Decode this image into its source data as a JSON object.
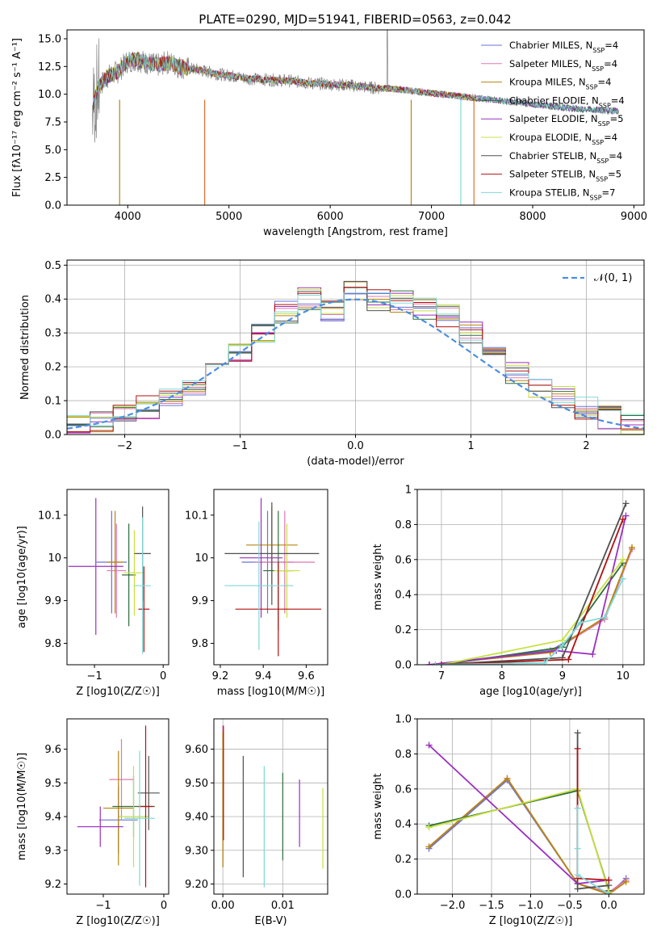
{
  "figure": {
    "title": "PLATE=0290, MJD=51941, FIBERID=0563, z=0.042"
  },
  "models": [
    {
      "name": "Chabrier MILES, N",
      "sub": "SSP",
      "eq": "=4",
      "color": "#6a72d6"
    },
    {
      "name": "Salpeter MILES, N",
      "sub": "SSP",
      "eq": "=4",
      "color": "#e078b0"
    },
    {
      "name": "Kroupa MILES, N",
      "sub": "SSP",
      "eq": "=4",
      "color": "#b8860b"
    },
    {
      "name": "Chabrier ELODIE, N",
      "sub": "SSP",
      "eq": "=4",
      "color": "#2e6e3a"
    },
    {
      "name": "Salpeter ELODIE, N",
      "sub": "SSP",
      "eq": "=5",
      "color": "#9b2fc0"
    },
    {
      "name": "Kroupa ELODIE, N",
      "sub": "SSP",
      "eq": "=4",
      "color": "#c8e040"
    },
    {
      "name": "Chabrier STELIB, N",
      "sub": "SSP",
      "eq": "=4",
      "color": "#505050"
    },
    {
      "name": "Salpeter STELIB, N",
      "sub": "SSP",
      "eq": "=5",
      "color": "#b01010"
    },
    {
      "name": "Kroupa STELIB, N",
      "sub": "SSP",
      "eq": "=7",
      "color": "#80d8d8"
    }
  ],
  "chart_data": [
    {
      "id": "spectrum",
      "type": "line",
      "title": "PLATE=0290, MJD=51941, FIBERID=0563, z=0.042",
      "xlabel": "wavelength [Angstrom, rest frame]",
      "ylabel": "Flux [fλ10⁻¹⁷ erg cm⁻² s⁻¹ A⁻¹]",
      "xlim": [
        3400,
        9100
      ],
      "ylim": [
        0,
        15.8
      ],
      "xticks": [
        4000,
        5000,
        6000,
        7000,
        8000,
        9000
      ],
      "yticks": [
        0.0,
        2.5,
        5.0,
        7.5,
        10.0,
        12.5,
        15.0
      ],
      "data_color": "#808080",
      "spectrum_x": [
        3650,
        3700,
        3800,
        3900,
        4000,
        4100,
        4200,
        4300,
        4400,
        4500,
        4600,
        4700,
        4800,
        4900,
        5000,
        5200,
        5400,
        5600,
        5800,
        6000,
        6200,
        6400,
        6600,
        6800,
        7000,
        7200,
        7400,
        7600,
        7800,
        8000,
        8200,
        8400,
        8600,
        8800
      ],
      "spectrum_y": [
        8.5,
        10.5,
        11.6,
        12.0,
        13.0,
        13.1,
        12.8,
        12.6,
        12.9,
        12.5,
        12.3,
        12.2,
        12.0,
        11.8,
        11.7,
        11.4,
        11.3,
        11.2,
        11.0,
        10.9,
        10.8,
        10.6,
        10.5,
        10.3,
        10.1,
        9.9,
        9.7,
        9.5,
        9.3,
        9.1,
        8.9,
        8.7,
        8.6,
        8.5
      ]
    },
    {
      "id": "residuals",
      "type": "line",
      "xlabel": "(data-model)/error",
      "ylabel": "Normed distribution",
      "xlim": [
        -2.5,
        2.5
      ],
      "ylim": [
        0,
        0.515
      ],
      "xticks": [
        -2,
        -1,
        0,
        1,
        2
      ],
      "yticks": [
        0.0,
        0.1,
        0.2,
        0.3,
        0.4,
        0.5
      ],
      "legend": "𝒩(0, 1)",
      "gauss_color": "#4a8fe0",
      "bin_edges": [
        -2.5,
        -2.3,
        -2.1,
        -1.9,
        -1.7,
        -1.5,
        -1.3,
        -1.1,
        -0.9,
        -0.7,
        -0.5,
        -0.3,
        -0.1,
        0.1,
        0.3,
        0.5,
        0.7,
        0.9,
        1.1,
        1.3,
        1.5,
        1.7,
        1.9,
        2.1,
        2.3,
        2.5
      ],
      "hist_base": [
        0.03,
        0.04,
        0.06,
        0.08,
        0.11,
        0.15,
        0.19,
        0.24,
        0.3,
        0.36,
        0.4,
        0.36,
        0.42,
        0.4,
        0.39,
        0.37,
        0.35,
        0.3,
        0.24,
        0.18,
        0.14,
        0.11,
        0.08,
        0.05,
        0.03
      ]
    },
    {
      "id": "Z-age",
      "type": "scatter",
      "xlabel": "Z [log10(Z/Z☉)]",
      "ylabel": "age  [log10(age/yr)]",
      "xlim": [
        -1.4,
        0.08
      ],
      "ylim": [
        9.75,
        10.16
      ],
      "xticks": [
        -1,
        0
      ],
      "yticks": [
        9.8,
        9.9,
        10.0,
        10.1
      ],
      "points": [
        {
          "x": -0.75,
          "y": 9.99,
          "xerr": 0.22,
          "yerr": 0.12
        },
        {
          "x": -0.68,
          "y": 9.97,
          "xerr": 0.14,
          "yerr": 0.11
        },
        {
          "x": -0.7,
          "y": 9.99,
          "xerr": 0.12,
          "yerr": 0.12
        },
        {
          "x": -0.5,
          "y": 9.96,
          "xerr": 0.1,
          "yerr": 0.12
        },
        {
          "x": -0.98,
          "y": 9.98,
          "xerr": 0.4,
          "yerr": 0.16
        },
        {
          "x": -0.42,
          "y": 9.965,
          "xerr": 0.15,
          "yerr": 0.1
        },
        {
          "x": -0.3,
          "y": 10.01,
          "xerr": 0.12,
          "yerr": 0.11
        },
        {
          "x": -0.28,
          "y": 9.88,
          "xerr": 0.08,
          "yerr": 0.1
        },
        {
          "x": -0.3,
          "y": 9.935,
          "xerr": 0.12,
          "yerr": 0.16
        }
      ]
    },
    {
      "id": "mass-age",
      "type": "scatter",
      "xlabel": "mass [log10(M/M☉)]",
      "ylabel": "",
      "xlim": [
        9.17,
        9.7
      ],
      "ylim": [
        9.75,
        10.16
      ],
      "xticks": [
        9.2,
        9.4,
        9.6
      ],
      "yticks": [
        9.8,
        9.9,
        10.0,
        10.1
      ],
      "points": [
        {
          "x": 9.42,
          "y": 9.99,
          "xerr": 0.12,
          "yerr": 0.12
        },
        {
          "x": 9.5,
          "y": 9.99,
          "xerr": 0.14,
          "yerr": 0.12
        },
        {
          "x": 9.44,
          "y": 10.03,
          "xerr": 0.12,
          "yerr": 0.09
        },
        {
          "x": 9.47,
          "y": 9.97,
          "xerr": 0.07,
          "yerr": 0.14
        },
        {
          "x": 9.39,
          "y": 10.0,
          "xerr": 0.1,
          "yerr": 0.14
        },
        {
          "x": 9.51,
          "y": 9.97,
          "xerr": 0.06,
          "yerr": 0.11
        },
        {
          "x": 9.44,
          "y": 10.01,
          "xerr": 0.22,
          "yerr": 0.12
        },
        {
          "x": 9.47,
          "y": 9.88,
          "xerr": 0.2,
          "yerr": 0.11
        },
        {
          "x": 9.38,
          "y": 9.935,
          "xerr": 0.16,
          "yerr": 0.15
        }
      ]
    },
    {
      "id": "age-weight",
      "type": "line",
      "xlabel": "age  [log10(age/yr)]",
      "ylabel": "mass weight",
      "xlim": [
        6.6,
        10.35
      ],
      "ylim": [
        0,
        1.0
      ],
      "xticks": [
        7,
        8,
        9,
        10
      ],
      "yticks": [
        0.0,
        0.2,
        0.4,
        0.6,
        0.8,
        1.0
      ],
      "series": [
        [
          [
            6.8,
            0.0
          ],
          [
            8.8,
            0.08
          ],
          [
            9.7,
            0.26
          ],
          [
            10.15,
            0.66
          ]
        ],
        [
          [
            6.8,
            0.0
          ],
          [
            8.8,
            0.07
          ],
          [
            9.7,
            0.26
          ],
          [
            10.15,
            0.66
          ]
        ],
        [
          [
            6.8,
            0.0
          ],
          [
            8.8,
            0.07
          ],
          [
            9.7,
            0.27
          ],
          [
            10.15,
            0.67
          ]
        ],
        [
          [
            7.0,
            0.0
          ],
          [
            9.0,
            0.1
          ],
          [
            10.0,
            0.58
          ]
        ],
        [
          [
            6.8,
            0.0
          ],
          [
            8.9,
            0.08
          ],
          [
            9.5,
            0.06
          ],
          [
            10.05,
            0.85
          ]
        ],
        [
          [
            7.0,
            0.0
          ],
          [
            9.0,
            0.14
          ],
          [
            10.0,
            0.6
          ]
        ],
        [
          [
            6.9,
            0.0
          ],
          [
            9.0,
            0.04
          ],
          [
            10.05,
            0.92
          ]
        ],
        [
          [
            7.0,
            0.0
          ],
          [
            9.1,
            0.03
          ],
          [
            10.0,
            0.83
          ]
        ],
        [
          [
            6.9,
            0.0
          ],
          [
            8.7,
            0.01
          ],
          [
            9.0,
            0.11
          ],
          [
            9.3,
            0.24
          ],
          [
            9.7,
            0.27
          ],
          [
            10.0,
            0.49
          ]
        ]
      ]
    },
    {
      "id": "Z-mass",
      "type": "scatter",
      "xlabel": "Z [log10(Z/Z☉)]",
      "ylabel": "mass [log10(M/M☉)]",
      "xlim": [
        -1.6,
        0.08
      ],
      "ylim": [
        9.17,
        9.69
      ],
      "xticks": [
        -1,
        0
      ],
      "yticks": [
        9.2,
        9.3,
        9.4,
        9.5,
        9.6
      ],
      "points": [
        {
          "x": -0.75,
          "y": 9.39,
          "xerr": 0.32,
          "yerr": 0.1
        },
        {
          "x": -0.7,
          "y": 9.51,
          "xerr": 0.2,
          "yerr": 0.12
        },
        {
          "x": -0.75,
          "y": 9.425,
          "xerr": 0.25,
          "yerr": 0.17
        },
        {
          "x": -0.5,
          "y": 9.43,
          "xerr": 0.35,
          "yerr": 0.09
        },
        {
          "x": -1.05,
          "y": 9.37,
          "xerr": 0.38,
          "yerr": 0.06
        },
        {
          "x": -0.5,
          "y": 9.4,
          "xerr": 0.24,
          "yerr": 0.15
        },
        {
          "x": -0.25,
          "y": 9.47,
          "xerr": 0.18,
          "yerr": 0.11
        },
        {
          "x": -0.3,
          "y": 9.43,
          "xerr": 0.12,
          "yerr": 0.24
        },
        {
          "x": -0.4,
          "y": 9.395,
          "xerr": 0.25,
          "yerr": 0.2
        }
      ]
    },
    {
      "id": "ebv-mass",
      "type": "scatter",
      "xlabel": "E(B-V)",
      "ylabel": "",
      "xlim": [
        -0.0015,
        0.0175
      ],
      "ylim": [
        9.17,
        9.69
      ],
      "xticks": [
        0.0,
        0.01
      ],
      "yticks": [
        9.2,
        9.3,
        9.4,
        9.5,
        9.6
      ],
      "points": [
        {
          "x": 0.0,
          "y": 9.45,
          "xerr": 0,
          "yerr": 0.2
        },
        {
          "x": 0.0,
          "y": 9.47,
          "xerr": 0,
          "yerr": 0.2
        },
        {
          "x": 0.0,
          "y": 9.45,
          "xerr": 0,
          "yerr": 0.2
        },
        {
          "x": 0.01,
          "y": 9.4,
          "xerr": 0,
          "yerr": 0.13
        },
        {
          "x": 0.0128,
          "y": 9.41,
          "xerr": 0,
          "yerr": 0.1
        },
        {
          "x": 0.0167,
          "y": 9.365,
          "xerr": 0,
          "yerr": 0.12
        },
        {
          "x": 0.0034,
          "y": 9.4,
          "xerr": 0,
          "yerr": 0.18
        },
        {
          "x": 0.0001,
          "y": 9.5,
          "xerr": 0,
          "yerr": 0.17
        },
        {
          "x": 0.0069,
          "y": 9.37,
          "xerr": 0,
          "yerr": 0.18
        }
      ]
    },
    {
      "id": "Z-weight",
      "type": "line",
      "xlabel": "Z [log10(Z/Z☉)]",
      "ylabel": "mass weight",
      "xlim": [
        -2.45,
        0.45
      ],
      "ylim": [
        0,
        1.0
      ],
      "xticks": [
        -2.0,
        -1.5,
        -1.0,
        -0.5,
        0.0
      ],
      "yticks": [
        0.0,
        0.2,
        0.4,
        0.6,
        0.8,
        1.0
      ],
      "series": [
        [
          [
            -2.3,
            0.26
          ],
          [
            -1.3,
            0.65
          ],
          [
            -0.4,
            0.06
          ],
          [
            0.0,
            0.0
          ],
          [
            0.22,
            0.09
          ]
        ],
        [
          [
            -2.3,
            0.27
          ],
          [
            -1.3,
            0.66
          ],
          [
            -0.4,
            0.06
          ],
          [
            0.0,
            0.01
          ],
          [
            0.22,
            0.08
          ]
        ],
        [
          [
            -2.3,
            0.27
          ],
          [
            -1.3,
            0.66
          ],
          [
            -0.4,
            0.06
          ],
          [
            0.0,
            0.0
          ],
          [
            0.22,
            0.07
          ]
        ],
        [
          [
            -2.3,
            0.39
          ],
          [
            -0.4,
            0.59
          ],
          [
            0.0,
            0.02
          ]
        ],
        [
          [
            -2.3,
            0.85
          ],
          [
            -0.4,
            0.06
          ],
          [
            0.0,
            0.08
          ]
        ],
        [
          [
            -2.3,
            0.38
          ],
          [
            -0.4,
            0.6
          ],
          [
            0.0,
            0.01
          ]
        ],
        [
          [
            -0.4,
            0.92
          ],
          [
            -0.4,
            0.03
          ],
          [
            0.0,
            0.05
          ]
        ],
        [
          [
            -0.4,
            0.83
          ],
          [
            -0.4,
            0.09
          ],
          [
            0.0,
            0.08
          ]
        ],
        [
          [
            -0.4,
            0.49
          ],
          [
            -0.4,
            0.26
          ],
          [
            -0.4,
            0.11
          ],
          [
            0.0,
            0.0
          ]
        ]
      ]
    }
  ]
}
